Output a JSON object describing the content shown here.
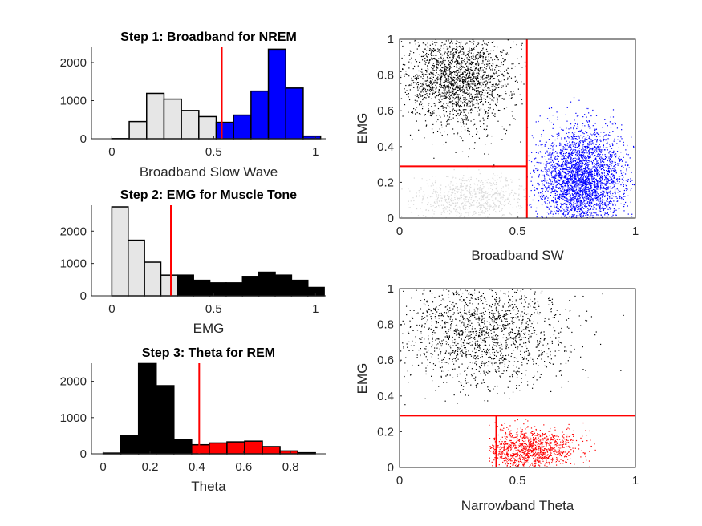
{
  "chart_data": [
    {
      "type": "bar",
      "title": "Step 1: Broadband for NREM",
      "xlabel": "Broadband Slow Wave",
      "ylabel": "",
      "xlim": [
        -0.1,
        1.05
      ],
      "ylim": [
        0,
        2400
      ],
      "xticks": [
        "0",
        "0.5",
        "1"
      ],
      "yticks": [
        "0",
        "1000",
        "2000"
      ],
      "bin_width": 0.0854,
      "threshold": 0.54,
      "threshold_color": "#ff0000",
      "below_color": "#e6e6e6",
      "above_color": "#0000ff",
      "bins": [
        0.0,
        0.0854,
        0.1708,
        0.2562,
        0.3416,
        0.427,
        0.5124,
        0.5978,
        0.6832,
        0.7686,
        0.854,
        0.9394
      ],
      "values": [
        5,
        450,
        1190,
        1040,
        740,
        580,
        430,
        620,
        1250,
        2350,
        1330,
        70
      ]
    },
    {
      "type": "bar",
      "title": "Step 2: EMG for Muscle Tone",
      "xlabel": "EMG",
      "ylabel": "",
      "xlim": [
        -0.1,
        1.05
      ],
      "ylim": [
        0,
        2800
      ],
      "xticks": [
        "0",
        "0.5",
        "1"
      ],
      "yticks": [
        "0",
        "1000",
        "2000"
      ],
      "bin_width": 0.0802,
      "threshold": 0.29,
      "threshold_color": "#ff0000",
      "below_color": "#e6e6e6",
      "above_color": "#000000",
      "bins": [
        0.0,
        0.0802,
        0.1604,
        0.2406,
        0.3208,
        0.401,
        0.4812,
        0.5614,
        0.6416,
        0.7218,
        0.802,
        0.8822,
        0.9624
      ],
      "values": [
        2750,
        1720,
        1040,
        640,
        640,
        480,
        400,
        400,
        600,
        730,
        640,
        480,
        260
      ]
    },
    {
      "type": "bar",
      "title": "Step 3: Theta for REM",
      "xlabel": "Theta",
      "ylabel": "",
      "xlim": [
        -0.05,
        0.95
      ],
      "ylim": [
        0,
        2500
      ],
      "xticks": [
        "0",
        "0.2",
        "0.4",
        "0.6",
        "0.8"
      ],
      "yticks": [
        "0",
        "1000",
        "2000"
      ],
      "bin_width": 0.0755,
      "threshold": 0.41,
      "threshold_color": "#ff0000",
      "below_color": "#000000",
      "above_color": "#ff0000",
      "bins": [
        0.0,
        0.0755,
        0.151,
        0.2265,
        0.302,
        0.3775,
        0.453,
        0.5285,
        0.604,
        0.6795,
        0.755,
        0.8305
      ],
      "values": [
        20,
        510,
        2490,
        1880,
        400,
        250,
        300,
        330,
        350,
        200,
        80,
        30
      ]
    },
    {
      "type": "scatter",
      "title": "",
      "xlabel": "Broadband SW",
      "ylabel": "EMG",
      "xlim": [
        0,
        1
      ],
      "ylim": [
        0,
        1
      ],
      "xticks": [
        "0",
        "0.5",
        "1"
      ],
      "yticks": [
        "0",
        "0.2",
        "0.4",
        "0.6",
        "0.8",
        "1"
      ],
      "threshold_x": 0.54,
      "threshold_y": 0.29,
      "clusters": [
        {
          "color": "#000000",
          "count": 1900,
          "cx": 0.25,
          "cy": 0.78,
          "sx": 0.12,
          "sy": 0.14,
          "xmin": 0.0,
          "xmax": 0.54,
          "ymin": 0.29,
          "ymax": 1.0
        },
        {
          "color": "#0000ff",
          "count": 2900,
          "cx": 0.77,
          "cy": 0.22,
          "sx": 0.09,
          "sy": 0.14,
          "xmin": 0.54,
          "xmax": 1.0,
          "ymin": 0.0,
          "ymax": 0.85
        },
        {
          "color": "#d9d9d9",
          "count": 700,
          "cx": 0.3,
          "cy": 0.12,
          "sx": 0.13,
          "sy": 0.07,
          "xmin": 0.0,
          "xmax": 0.54,
          "ymin": 0.0,
          "ymax": 0.29
        }
      ]
    },
    {
      "type": "scatter",
      "title": "",
      "xlabel": "Narrowband Theta",
      "ylabel": "EMG",
      "xlim": [
        0,
        1
      ],
      "ylim": [
        0,
        1
      ],
      "xticks": [
        "0",
        "0.5",
        "1"
      ],
      "yticks": [
        "0",
        "0.2",
        "0.4",
        "0.6",
        "0.8",
        "1"
      ],
      "threshold_x": 0.41,
      "threshold_y": 0.29,
      "clusters": [
        {
          "color": "#000000",
          "count": 1500,
          "cx": 0.35,
          "cy": 0.75,
          "sx": 0.18,
          "sy": 0.15,
          "xmin": 0.0,
          "xmax": 1.0,
          "ymin": 0.29,
          "ymax": 1.0
        },
        {
          "color": "#ff0000",
          "count": 1100,
          "cx": 0.55,
          "cy": 0.1,
          "sx": 0.1,
          "sy": 0.06,
          "xmin": 0.38,
          "xmax": 0.85,
          "ymin": 0.0,
          "ymax": 0.29
        }
      ]
    }
  ]
}
